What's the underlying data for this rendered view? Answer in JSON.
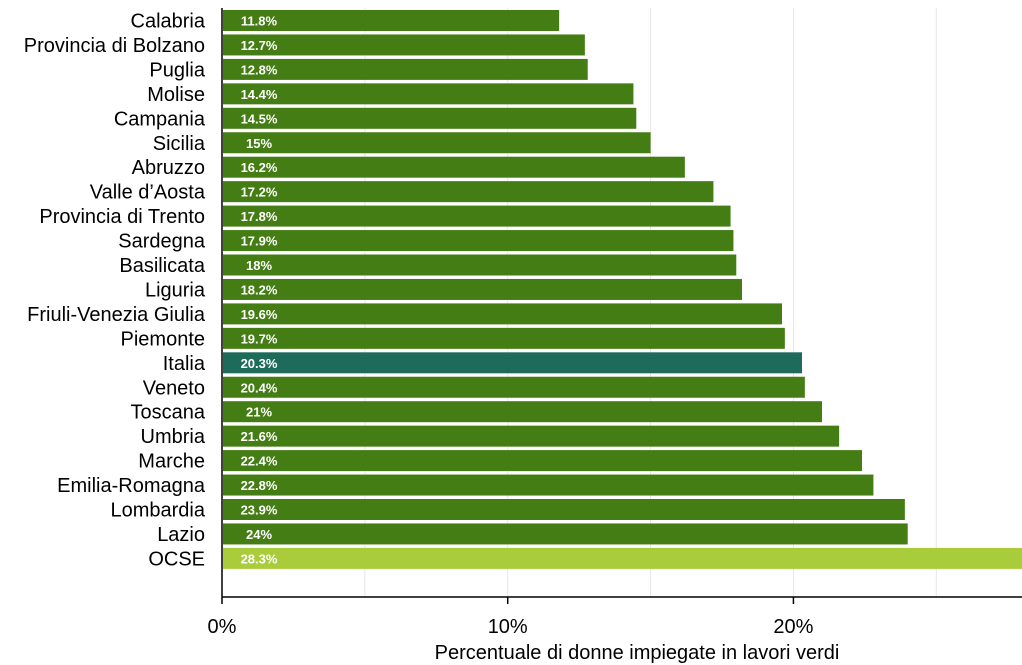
{
  "chart_data": {
    "type": "bar",
    "orientation": "horizontal",
    "categories": [
      "Calabria",
      "Provincia di Bolzano",
      "Puglia",
      "Molise",
      "Campania",
      "Sicilia",
      "Abruzzo",
      "Valle d’Aosta",
      "Provincia di Trento",
      "Sardegna",
      "Basilicata",
      "Liguria",
      "Friuli-Venezia Giulia",
      "Piemonte",
      "Italia",
      "Veneto",
      "Toscana",
      "Umbria",
      "Marche",
      "Emilia-Romagna",
      "Lombardia",
      "Lazio",
      "OCSE"
    ],
    "values": [
      11.8,
      12.7,
      12.8,
      14.4,
      14.5,
      15,
      16.2,
      17.2,
      17.8,
      17.9,
      18,
      18.2,
      19.6,
      19.7,
      20.3,
      20.4,
      21,
      21.6,
      22.4,
      22.8,
      23.9,
      24,
      28.3
    ],
    "value_labels": [
      "11.8%",
      "12.7%",
      "12.8%",
      "14.4%",
      "14.5%",
      "15%",
      "16.2%",
      "17.2%",
      "17.8%",
      "17.9%",
      "18%",
      "18.2%",
      "19.6%",
      "19.7%",
      "20.3%",
      "20.4%",
      "21%",
      "21.6%",
      "22.4%",
      "22.8%",
      "23.9%",
      "24%",
      "28.3%"
    ],
    "highlight": {
      "Italia": "#1f6b5b",
      "OCSE": "#a9cc3a"
    },
    "bar_color": "#447d14",
    "xlabel": "Percentuale di donne impiegate in lavori verdi",
    "ylabel": "",
    "title": "",
    "xlim": [
      0,
      28
    ],
    "xticks": [
      0,
      10,
      20
    ],
    "xtick_labels": [
      "0%",
      "10%",
      "20%"
    ],
    "minor_gridlines": [
      5,
      15,
      25
    ],
    "grid": true,
    "legend": "none"
  }
}
